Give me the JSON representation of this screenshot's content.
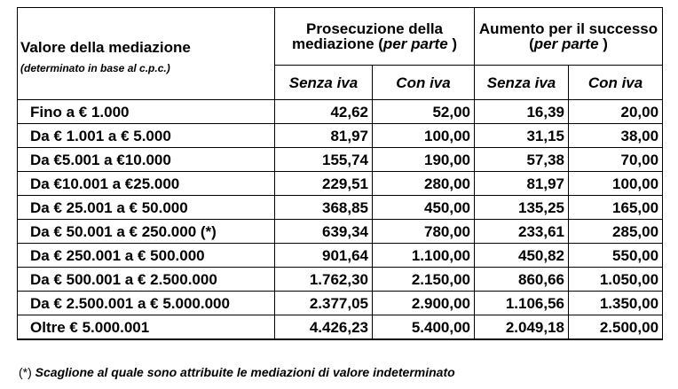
{
  "header": {
    "value_col_title": "Valore della mediazione",
    "value_col_subtitle": "(determinato in base al c.p.c.)",
    "group1_line1": "Prosecuzione della",
    "group1_line2_main": "mediazione (",
    "group1_line2_italic": "per parte",
    "group1_line2_end": " )",
    "group2_line1": "Aumento per il successo",
    "group2_line2_start": "(",
    "group2_line2_italic": "per parte",
    "group2_line2_end": " )",
    "sub_senza_iva_1": "Senza iva",
    "sub_con_iva_1": "Con iva",
    "sub_senza_iva_2": "Senza iva",
    "sub_con_iva_2": "Con iva"
  },
  "rows": [
    {
      "range": "Fino a € 1.000",
      "pros_senza": "42,62",
      "pros_con": "52,00",
      "aum_senza": "16,39",
      "aum_con": "20,00"
    },
    {
      "range": "Da € 1.001 a € 5.000",
      "pros_senza": "81,97",
      "pros_con": "100,00",
      "aum_senza": "31,15",
      "aum_con": "38,00"
    },
    {
      "range": "Da €5.001 a €10.000",
      "pros_senza": "155,74",
      "pros_con": "190,00",
      "aum_senza": "57,38",
      "aum_con": "70,00"
    },
    {
      "range": "Da €10.001 a €25.000",
      "pros_senza": "229,51",
      "pros_con": "280,00",
      "aum_senza": "81,97",
      "aum_con": "100,00"
    },
    {
      "range": "Da € 25.001 a € 50.000",
      "pros_senza": "368,85",
      "pros_con": "450,00",
      "aum_senza": "135,25",
      "aum_con": "165,00"
    },
    {
      "range": "Da € 50.001 a € 250.000 (*)",
      "pros_senza": "639,34",
      "pros_con": "780,00",
      "aum_senza": "233,61",
      "aum_con": "285,00"
    },
    {
      "range": "Da € 250.001 a € 500.000",
      "pros_senza": "901,64",
      "pros_con": "1.100,00",
      "aum_senza": "450,82",
      "aum_con": "550,00"
    },
    {
      "range": "Da € 500.001 a € 2.500.000",
      "pros_senza": "1.762,30",
      "pros_con": "2.150,00",
      "aum_senza": "860,66",
      "aum_con": "1.050,00"
    },
    {
      "range": "Da € 2.500.001 a € 5.000.000",
      "pros_senza": "2.377,05",
      "pros_con": "2.900,00",
      "aum_senza": "1.106,56",
      "aum_con": "1.350,00"
    },
    {
      "range": "Oltre € 5.000.001",
      "pros_senza": "4.426,23",
      "pros_con": "5.400,00",
      "aum_senza": "2.049,18",
      "aum_con": "2.500,00"
    }
  ],
  "footnote": {
    "mark": "(*)",
    "text": "Scaglione al quale sono attribuite le mediazioni di valore indeterminato"
  }
}
